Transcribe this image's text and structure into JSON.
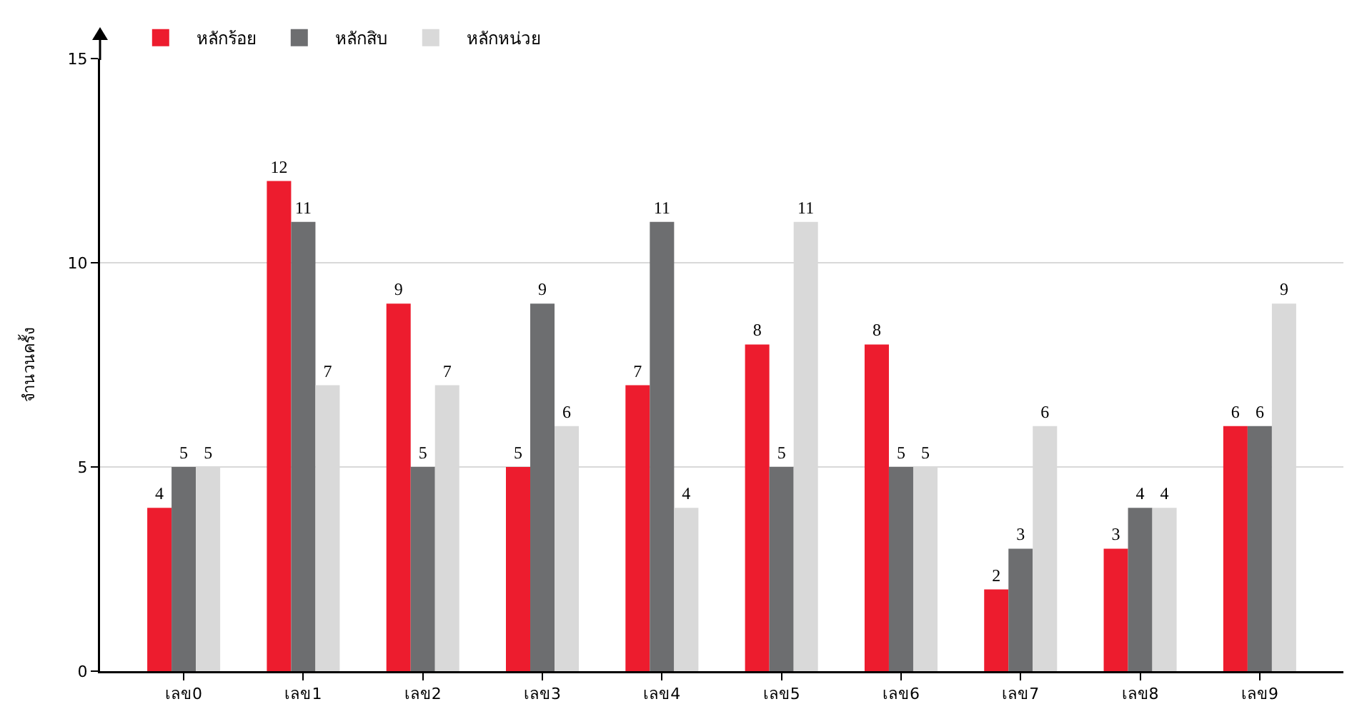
{
  "chart_data": {
    "type": "bar",
    "ylabel": "จำนวนครั้ง",
    "categories": [
      "เลข0",
      "เลข1",
      "เลข2",
      "เลข3",
      "เลข4",
      "เลข5",
      "เลข6",
      "เลข7",
      "เลข8",
      "เลข9"
    ],
    "series": [
      {
        "name": "หลักร้อย",
        "color": "#ed1c2e",
        "values": [
          4,
          12,
          9,
          5,
          7,
          8,
          8,
          2,
          3,
          6
        ]
      },
      {
        "name": "หลักสิบ",
        "color": "#6d6e70",
        "values": [
          5,
          11,
          5,
          9,
          11,
          5,
          5,
          3,
          4,
          6
        ]
      },
      {
        "name": "หลักหน่วย",
        "color": "#d9d9d9",
        "values": [
          5,
          7,
          7,
          6,
          4,
          11,
          5,
          6,
          4,
          9
        ]
      }
    ],
    "ylim": [
      0,
      15
    ],
    "yticks": [
      0,
      5,
      10,
      15
    ],
    "grid": "y",
    "legend": "top left",
    "data_labels": true
  }
}
